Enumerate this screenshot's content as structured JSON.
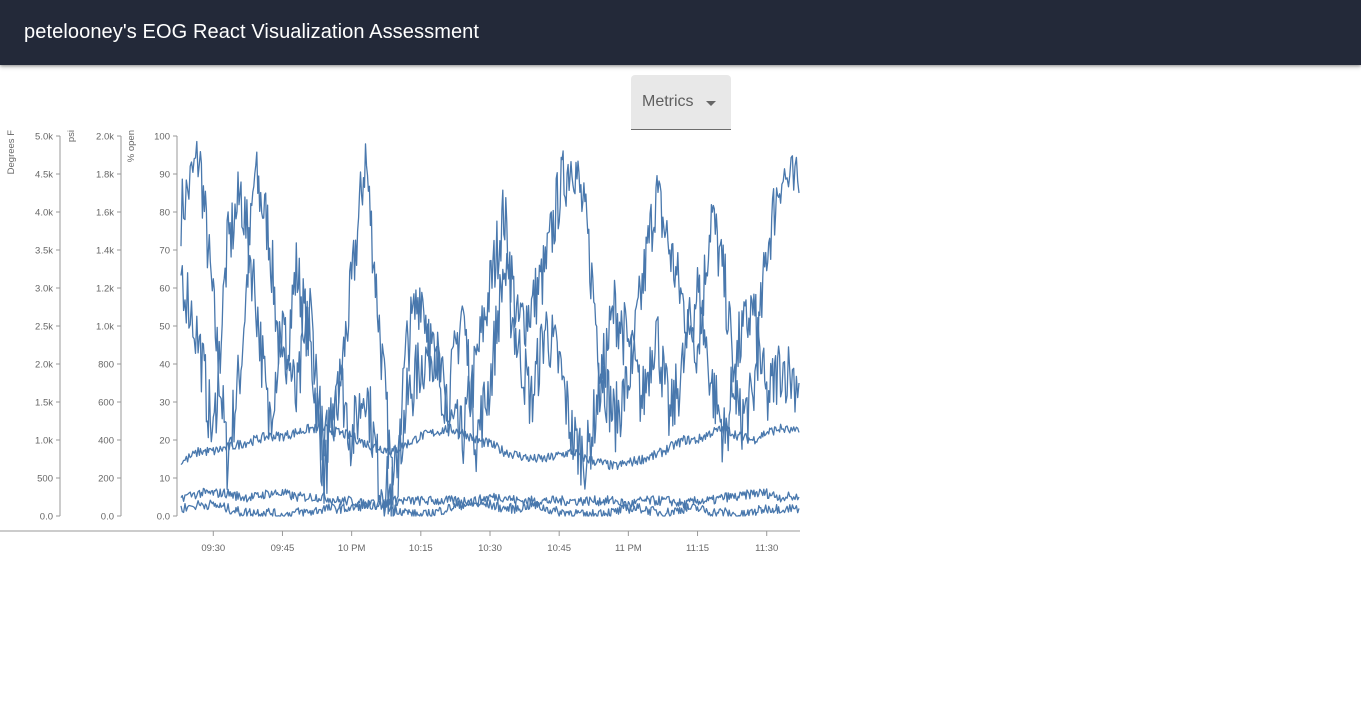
{
  "header": {
    "title": "petelooney's EOG React Visualization Assessment"
  },
  "metrics_select": {
    "label": "Metrics"
  },
  "colors": {
    "appbar": "#232939",
    "line": "#4978ad",
    "axis": "#999999",
    "text": "#666666"
  },
  "chart_data": {
    "type": "line",
    "y_axes": [
      {
        "id": "temp",
        "label": "Degrees F",
        "range": [
          0,
          5000
        ],
        "ticks": [
          "0.0",
          "500",
          "1.0k",
          "1.5k",
          "2.0k",
          "2.5k",
          "3.0k",
          "3.5k",
          "4.0k",
          "4.5k",
          "5.0k"
        ]
      },
      {
        "id": "pressure",
        "label": "psi",
        "range": [
          0,
          2000
        ],
        "ticks": [
          "0.0",
          "200",
          "400",
          "600",
          "800",
          "1.0k",
          "1.2k",
          "1.4k",
          "1.6k",
          "1.8k",
          "2.0k"
        ]
      },
      {
        "id": "percent",
        "label": "% open",
        "range": [
          0,
          100
        ],
        "ticks": [
          "0.0",
          "10",
          "20",
          "30",
          "40",
          "50",
          "60",
          "70",
          "80",
          "90",
          "100"
        ]
      }
    ],
    "x_axis": {
      "range": [
        "21:23",
        "23:37"
      ],
      "ticks": [
        {
          "time": "21:30",
          "label": "09:30"
        },
        {
          "time": "21:45",
          "label": "09:45"
        },
        {
          "time": "22:00",
          "label": "10 PM"
        },
        {
          "time": "22:15",
          "label": "10:15"
        },
        {
          "time": "22:30",
          "label": "10:30"
        },
        {
          "time": "22:45",
          "label": "10:45"
        },
        {
          "time": "23:00",
          "label": "11 PM"
        },
        {
          "time": "23:15",
          "label": "11:15"
        },
        {
          "time": "23:30",
          "label": "11:30"
        }
      ]
    },
    "series": [
      {
        "axis": "percent",
        "x": [
          "21:23",
          "21:27",
          "21:30",
          "21:33",
          "21:36",
          "21:39",
          "21:42",
          "21:45",
          "21:48",
          "21:51",
          "21:54",
          "21:57",
          "22:00",
          "22:03",
          "22:06",
          "22:09",
          "22:12",
          "22:15",
          "22:18",
          "22:21",
          "22:24",
          "22:27",
          "22:30",
          "22:33",
          "22:36",
          "22:39",
          "22:42",
          "22:45",
          "22:48",
          "22:51",
          "22:54",
          "22:57",
          "23:00",
          "23:03",
          "23:06",
          "23:09",
          "23:12",
          "23:15",
          "23:18",
          "23:21",
          "23:24",
          "23:27",
          "23:30",
          "23:33",
          "23:37"
        ],
        "y": [
          80,
          95,
          55,
          15,
          40,
          90,
          75,
          35,
          65,
          45,
          10,
          30,
          60,
          95,
          50,
          5,
          30,
          40,
          45,
          25,
          20,
          40,
          60,
          80,
          50,
          55,
          65,
          85,
          95,
          75,
          40,
          25,
          35,
          60,
          85,
          70,
          55,
          45,
          80,
          60,
          25,
          30,
          70,
          90,
          85
        ]
      },
      {
        "axis": "percent",
        "x": [
          "21:23",
          "21:27",
          "21:30",
          "21:33",
          "21:36",
          "21:39",
          "21:42",
          "21:45",
          "21:48",
          "21:51",
          "21:54",
          "21:57",
          "22:00",
          "22:03",
          "22:06",
          "22:09",
          "22:12",
          "22:15",
          "22:18",
          "22:21",
          "22:24",
          "22:27",
          "22:30",
          "22:33",
          "22:36",
          "22:39",
          "22:42",
          "22:45",
          "22:48",
          "22:51",
          "22:54",
          "22:57",
          "23:00",
          "23:03",
          "23:06",
          "23:09",
          "23:12",
          "23:15",
          "23:18",
          "23:21",
          "23:24",
          "23:27",
          "23:30",
          "23:33",
          "23:37"
        ],
        "y": [
          65,
          45,
          20,
          70,
          85,
          60,
          25,
          50,
          30,
          55,
          15,
          40,
          20,
          35,
          10,
          5,
          45,
          60,
          40,
          30,
          55,
          20,
          35,
          65,
          45,
          30,
          50,
          40,
          20,
          15,
          35,
          55,
          45,
          30,
          50,
          25,
          40,
          60,
          35,
          20,
          45,
          55,
          30,
          40,
          35
        ]
      },
      {
        "axis": "percent",
        "x": [
          "21:23",
          "21:27",
          "21:30",
          "21:33",
          "21:36",
          "21:39",
          "21:42",
          "21:45",
          "21:48",
          "21:51",
          "21:54",
          "21:57",
          "22:00",
          "22:03",
          "22:06",
          "22:09",
          "22:12",
          "22:15",
          "22:18",
          "22:21",
          "22:24",
          "22:27",
          "22:30",
          "22:33",
          "22:36",
          "22:39",
          "22:42",
          "22:45",
          "22:48",
          "22:51",
          "22:54",
          "22:57",
          "23:00",
          "23:03",
          "23:06",
          "23:09",
          "23:12",
          "23:15",
          "23:18",
          "23:21",
          "23:24",
          "23:27",
          "23:30",
          "23:33",
          "23:37"
        ],
        "y": [
          14,
          17,
          17,
          18,
          19,
          20,
          21,
          21,
          22,
          23,
          23,
          22,
          21,
          19,
          18,
          17,
          19,
          21,
          22,
          23,
          22,
          20,
          19,
          17,
          16,
          15,
          15,
          16,
          17,
          15,
          14,
          13,
          14,
          15,
          16,
          18,
          20,
          20,
          22,
          23,
          21,
          20,
          22,
          23,
          22
        ]
      },
      {
        "axis": "percent",
        "x": [
          "21:23",
          "21:27",
          "21:30",
          "21:33",
          "21:36",
          "21:39",
          "21:42",
          "21:45",
          "21:48",
          "21:51",
          "21:54",
          "21:57",
          "22:00",
          "22:03",
          "22:06",
          "22:09",
          "22:12",
          "22:15",
          "22:18",
          "22:21",
          "22:24",
          "22:27",
          "22:30",
          "22:33",
          "22:36",
          "22:39",
          "22:42",
          "22:45",
          "22:48",
          "22:51",
          "22:54",
          "22:57",
          "23:00",
          "23:03",
          "23:06",
          "23:09",
          "23:12",
          "23:15",
          "23:18",
          "23:21",
          "23:24",
          "23:27",
          "23:30",
          "23:33",
          "23:37"
        ],
        "y": [
          5,
          6,
          6,
          6,
          5,
          5,
          6,
          6,
          5,
          5,
          5,
          4,
          4,
          3,
          3,
          4,
          4,
          4,
          4,
          4,
          4,
          4,
          5,
          5,
          4,
          4,
          4,
          4,
          4,
          4,
          4,
          4,
          3,
          4,
          4,
          4,
          3,
          4,
          4,
          5,
          5,
          6,
          6,
          5,
          5
        ]
      },
      {
        "axis": "percent",
        "x": [
          "21:23",
          "21:27",
          "21:30",
          "21:33",
          "21:36",
          "21:39",
          "21:42",
          "21:45",
          "21:48",
          "21:51",
          "21:54",
          "21:57",
          "22:00",
          "22:03",
          "22:06",
          "22:09",
          "22:12",
          "22:15",
          "22:18",
          "22:21",
          "22:24",
          "22:27",
          "22:30",
          "22:33",
          "22:36",
          "22:39",
          "22:42",
          "22:45",
          "22:48",
          "22:51",
          "22:54",
          "22:57",
          "23:00",
          "23:03",
          "23:06",
          "23:09",
          "23:12",
          "23:15",
          "23:18",
          "23:21",
          "23:24",
          "23:27",
          "23:30",
          "23:33",
          "23:37"
        ],
        "y": [
          2,
          3,
          3,
          2,
          1,
          1,
          1,
          0,
          1,
          1,
          2,
          2,
          2,
          3,
          3,
          2,
          1,
          0,
          1,
          2,
          3,
          3,
          3,
          2,
          2,
          3,
          2,
          1,
          1,
          0,
          1,
          1,
          2,
          2,
          1,
          1,
          2,
          2,
          1,
          1,
          0,
          1,
          2,
          2,
          2
        ]
      }
    ]
  }
}
